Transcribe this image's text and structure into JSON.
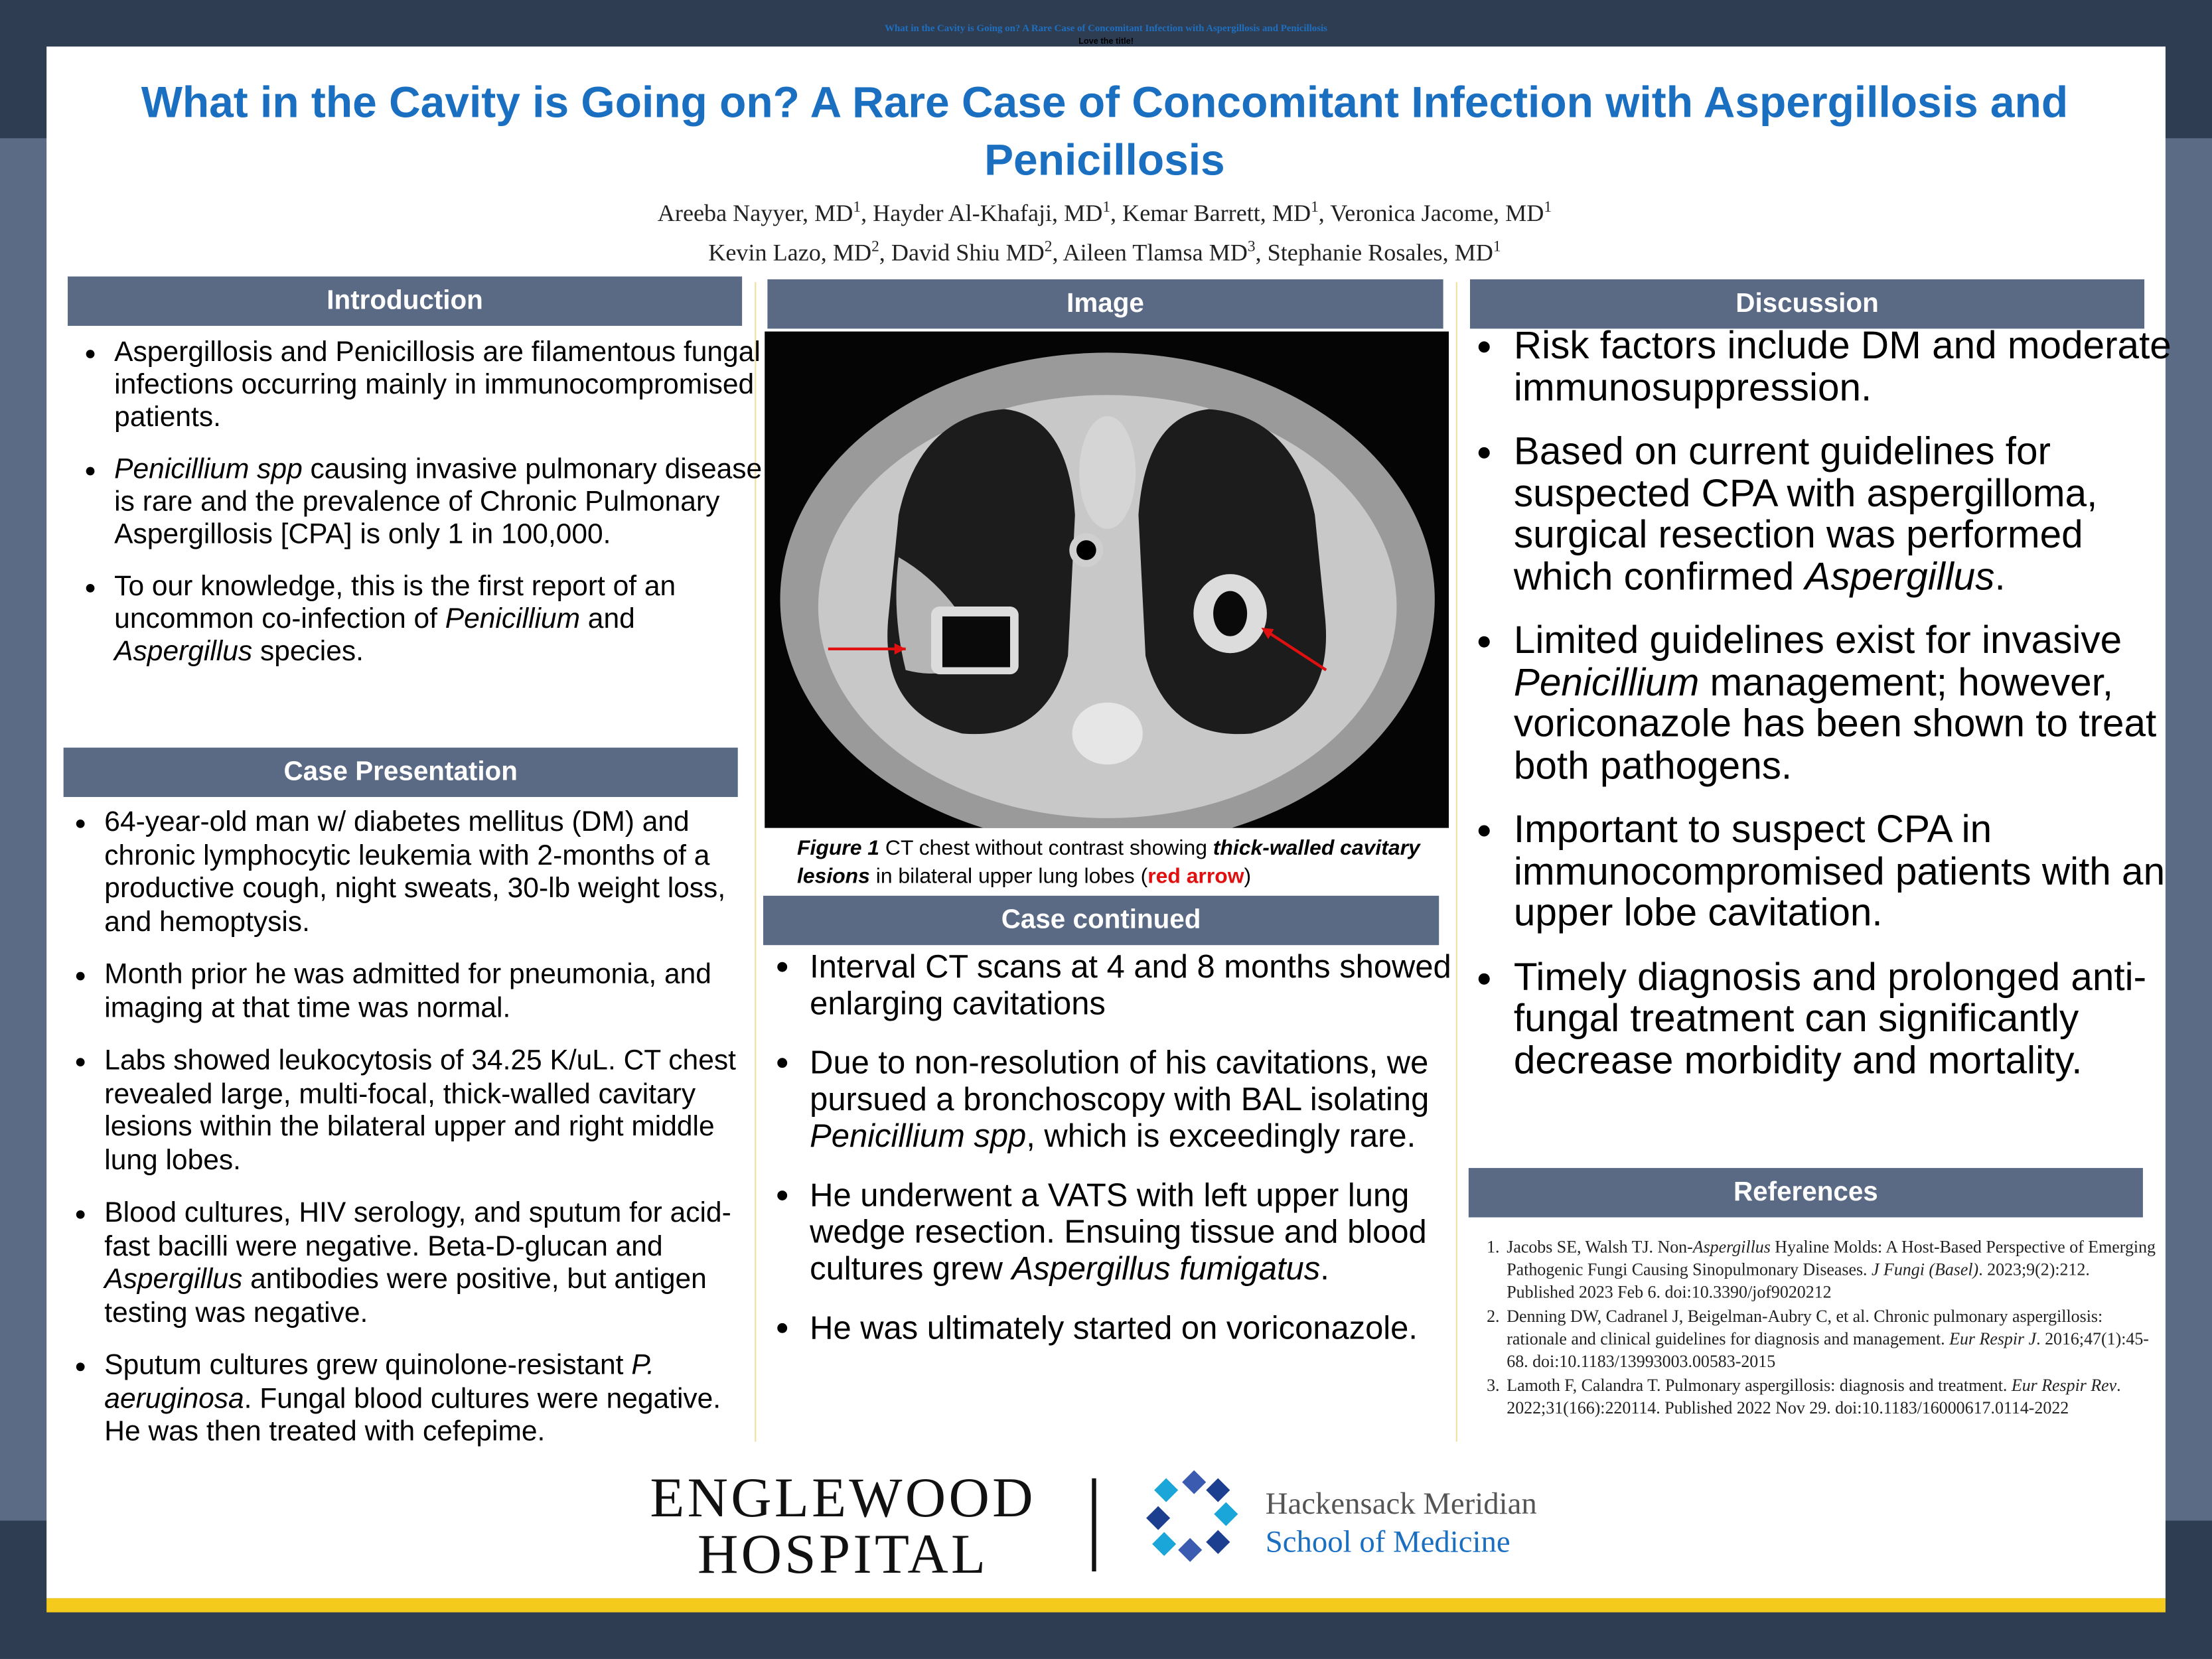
{
  "top_bar": {
    "title": "What in the Cavity is Going on? A Rare Case of Concomitant Infection with Aspergillosis and Penicillosis",
    "comment": "Love the title!"
  },
  "header": {
    "title": "What in the Cavity is Going on? A Rare Case of Concomitant Infection with Aspergillosis and Penicillosis",
    "authors": [
      [
        "Areeba Nayyer, MD",
        {
          "sup": "1"
        },
        ", Hayder Al-Khafaji, MD",
        {
          "sup": "1"
        },
        ", Kemar Barrett, MD",
        {
          "sup": "1"
        },
        ", Veronica Jacome, MD",
        {
          "sup": "1"
        }
      ],
      [
        "Kevin Lazo, MD",
        {
          "sup": "2"
        },
        ", David Shiu MD",
        {
          "sup": "2"
        },
        ", Aileen Tlamsa MD",
        {
          "sup": "3"
        },
        ", Stephanie Rosales, MD",
        {
          "sup": "1"
        }
      ]
    ]
  },
  "introduction": {
    "heading": "Introduction",
    "bullets": [
      [
        "Aspergillosis and Penicillosis are filamentous fungal infections occurring mainly in immunocompromised patients."
      ],
      [
        {
          "em": "Penicillium spp"
        },
        " causing invasive pulmonary disease is rare and the prevalence of Chronic Pulmonary Aspergillosis [CPA] is only 1 in 100,000."
      ],
      [
        "To our knowledge, this is the first report of an uncommon co-infection of ",
        {
          "em": "Penicillium"
        },
        " and ",
        {
          "em": "Aspergillus"
        },
        " species."
      ]
    ]
  },
  "case_presentation": {
    "heading": "Case Presentation",
    "bullets": [
      [
        "64-year-old man w/ diabetes mellitus (DM) and chronic lymphocytic leukemia with 2-months of a productive cough, night sweats, 30-lb weight loss, and hemoptysis."
      ],
      [
        "Month prior he was admitted for pneumonia, and imaging at that time was normal."
      ],
      [
        "Labs showed leukocytosis of 34.25 K/uL. CT chest revealed large, multi-focal, thick-walled cavitary lesions within the bilateral upper and right middle lung lobes."
      ],
      [
        "Blood cultures, HIV serology, and sputum for acid-fast bacilli were negative. Beta-D-glucan and ",
        {
          "em": "Aspergillus"
        },
        " antibodies were positive, but antigen testing was negative."
      ],
      [
        "Sputum cultures grew quinolone-resistant ",
        {
          "em": "P. aeruginosa"
        },
        ". Fungal blood cultures were negative. He was then treated with cefepime."
      ]
    ]
  },
  "image": {
    "heading": "Image",
    "caption": [
      {
        "bi": "Figure 1"
      },
      " CT chest without contrast showing ",
      {
        "bi": "thick-walled cavitary lesions"
      },
      " in bilateral upper lung lobes (",
      {
        "red": "red arrow"
      },
      ")"
    ]
  },
  "case_continued": {
    "heading": "Case continued",
    "bullets": [
      [
        " Interval CT scans at 4 and 8 months showed enlarging cavitations"
      ],
      [
        "Due to non-resolution of his cavitations, we pursued a bronchoscopy with BAL isolating ",
        {
          "em": "Penicillium spp"
        },
        ", which is exceedingly rare."
      ],
      [
        "He underwent a VATS with left upper lung wedge resection. Ensuing tissue and blood cultures grew ",
        {
          "em": "Aspergillus fumigatus"
        },
        "."
      ],
      [
        "He was ultimately started on voriconazole."
      ]
    ]
  },
  "discussion": {
    "heading": "Discussion",
    "bullets": [
      [
        "Risk factors include DM and moderate immunosuppression."
      ],
      [
        "Based on current guidelines for suspected CPA with aspergilloma, surgical resection was performed which confirmed ",
        {
          "em": "Aspergillus"
        },
        "."
      ],
      [
        "Limited guidelines exist for invasive ",
        {
          "em": "Penicillium"
        },
        " management; however, voriconazole has been shown to treat both pathogens."
      ],
      [
        "Important to suspect CPA in immunocompromised patients with an upper lobe cavitation."
      ],
      [
        "Timely diagnosis and prolonged anti-fungal treatment can significantly decrease morbidity and mortality."
      ]
    ]
  },
  "references": {
    "heading": "References",
    "items": [
      [
        "Jacobs SE, Walsh TJ. Non-",
        {
          "em": "Aspergillus"
        },
        " Hyaline Molds: A Host-Based Perspective of Emerging Pathogenic Fungi Causing Sinopulmonary Diseases. ",
        {
          "em": "J Fungi (Basel)"
        },
        ". 2023;9(2):212. Published 2023 Feb 6. doi:10.3390/jof9020212"
      ],
      [
        "Denning DW, Cadranel J, Beigelman-Aubry C, et al. Chronic pulmonary aspergillosis: rationale and clinical guidelines for diagnosis and management. ",
        {
          "em": "Eur Respir J"
        },
        ". 2016;47(1):45-68. doi:10.1183/13993003.00583-2015"
      ],
      [
        "Lamoth F, Calandra T. Pulmonary aspergillosis: diagnosis and treatment. ",
        {
          "em": "Eur Respir Rev"
        },
        ". 2022;31(166):220114. Published 2022 Nov 29. doi:10.1183/16000617.0114-2022"
      ]
    ]
  },
  "logos": {
    "hospital": [
      "ENGLEWOOD",
      "HOSPITAL"
    ],
    "school": [
      "Hackensack Meridian",
      "School of Medicine"
    ]
  }
}
